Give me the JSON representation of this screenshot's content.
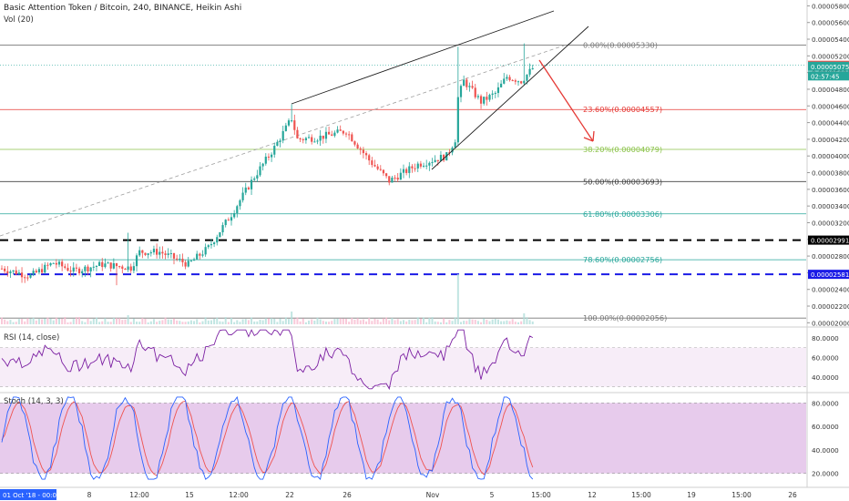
{
  "header": {
    "title": "Basic Attention Token / Bitcoin, 240, BINANCE, Heikin Ashi",
    "vol_label": "Vol (20)"
  },
  "colors": {
    "up": "#26a69a",
    "down": "#ef5350",
    "wedge": "#1e1e1e",
    "trend_dashed": "#9e9e9e",
    "arrow": "#e53935",
    "hline_blue": "#1a1ae6",
    "hline_black": "#000000",
    "rsi_line": "#7b1fa2",
    "rsi_band": "#f3e5f5",
    "stoch_k": "#2962ff",
    "stoch_d": "#ef5350",
    "stoch_band": "#e1bee7",
    "pane_border": "#cfcfcf"
  },
  "price_axis": {
    "ticks": [
      "0.00005800",
      "0.00005600",
      "0.00005400",
      "0.00005200",
      "0.00005000",
      "0.00004800",
      "0.00004600",
      "0.00004400",
      "0.00004200",
      "0.00004000",
      "0.00003800",
      "0.00003600",
      "0.00003400",
      "0.00003200",
      "0.00003000",
      "0.00002800",
      "0.00002600",
      "0.00002400",
      "0.00002200",
      "0.00002000"
    ],
    "tags": [
      {
        "value": 5.087e-05,
        "label": "0.00005087",
        "color": "#ef5350"
      },
      {
        "value": 5.075e-05,
        "label": "0.00005075",
        "color": "#26a69a"
      },
      {
        "value": 4.96e-05,
        "label": "02:57:45",
        "color": "#26a69a"
      },
      {
        "value": 2.991e-05,
        "label": "0.00002991",
        "color": "#000000"
      },
      {
        "value": 2.581e-05,
        "label": "0.00002581",
        "color": "#1a1ae6"
      }
    ]
  },
  "fib_levels": [
    {
      "label": "0.00%(0.00005330)",
      "value": 5.33e-05,
      "color": "#787878"
    },
    {
      "label": "23.60%(0.00004557)",
      "value": 4.557e-05,
      "color": "#e53935"
    },
    {
      "label": "38.20%(0.00004079)",
      "value": 4.079e-05,
      "color": "#8bc34a"
    },
    {
      "label": "50.00%(0.00003693)",
      "value": 3.693e-05,
      "color": "#424242"
    },
    {
      "label": "61.80%(0.00003306)",
      "value": 3.306e-05,
      "color": "#26a69a"
    },
    {
      "label": "78.60%(0.00002756)",
      "value": 2.756e-05,
      "color": "#26a69a"
    },
    {
      "label": "100.00%(0.00002056)",
      "value": 2.056e-05,
      "color": "#787878"
    }
  ],
  "rsi": {
    "label": "RSI (14, close)",
    "ticks": [
      "80.0000",
      "60.0000",
      "40.0000"
    ],
    "levels": [
      70,
      30
    ]
  },
  "stoch": {
    "label": "Stoch (14, 3, 3)",
    "ticks": [
      "80.0000",
      "60.0000",
      "40.0000",
      "20.0000"
    ],
    "levels": [
      80,
      20
    ]
  },
  "time_axis": {
    "start_tag": "01 Oct '18 - 00:00",
    "labels": [
      "8",
      "12:00",
      "15",
      "12:00",
      "22",
      "26",
      "Nov",
      "5",
      "15:00",
      "12",
      "15:00",
      "19",
      "15:00",
      "26"
    ]
  },
  "chart_data": {
    "type": "candlestick",
    "series_style": "Heikin Ashi",
    "ylim": [
      1.96e-05,
      5.87e-05
    ],
    "candles_count": 165,
    "candles": [],
    "volume": []
  }
}
